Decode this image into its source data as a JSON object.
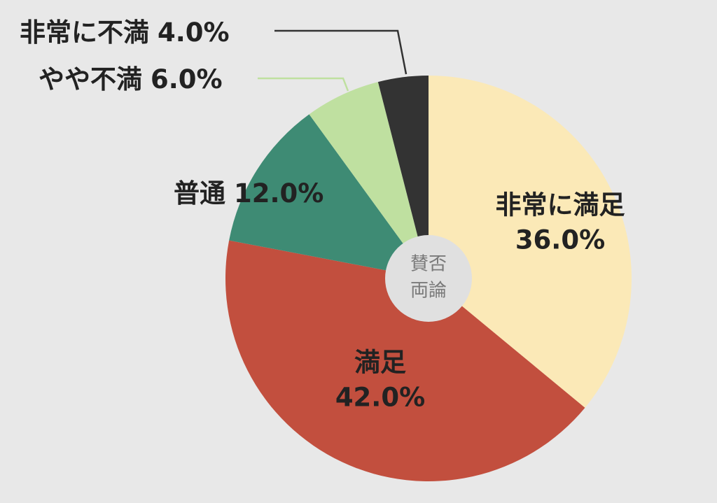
{
  "chart_data": {
    "type": "pie",
    "categories": [
      "非常に満足",
      "満足",
      "普通",
      "やや不満",
      "非常に不満"
    ],
    "values": [
      36.0,
      42.0,
      12.0,
      6.0,
      4.0
    ],
    "value_labels": [
      "36.0%",
      "42.0%",
      "12.0%",
      "6.0%",
      "4.0%"
    ],
    "colors": [
      "#fbe9b7",
      "#c24f3e",
      "#3e8b74",
      "#bfe0a0",
      "#333333"
    ],
    "center_label": [
      "賛否",
      "両論"
    ]
  }
}
